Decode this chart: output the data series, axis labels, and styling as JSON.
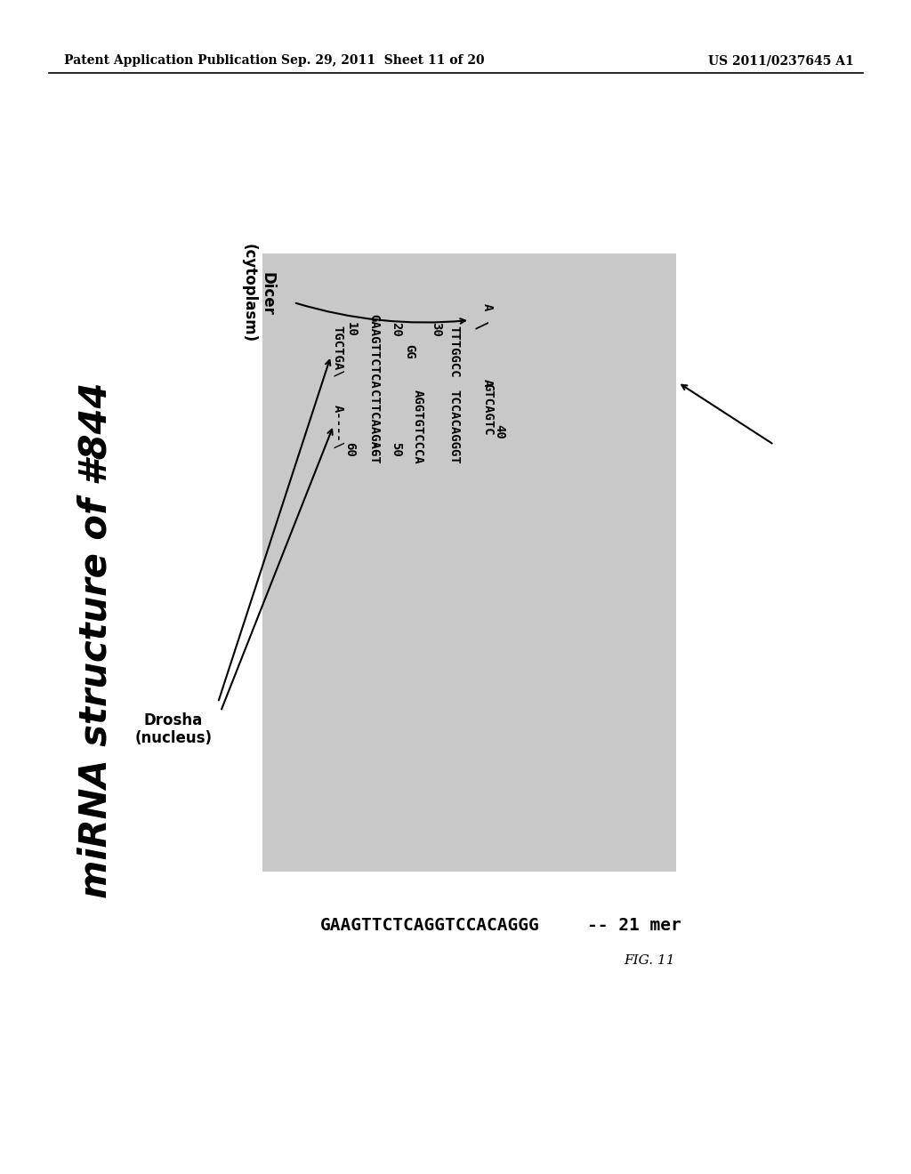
{
  "header_left": "Patent Application Publication",
  "header_center": "Sep. 29, 2011  Sheet 11 of 20",
  "header_right": "US 2011/0237645 A1",
  "title": "miRNA structure of #844",
  "fig_label": "FIG. 11",
  "bottom_seq1": "GAAGTTCTCAGGTCCACAGGG",
  "bottom_seq2": "-- 21 mer",
  "bg_color": "#c8c8c8",
  "dicer_label": "Dicer\n(cytoplasm)",
  "drosha_label": "Drosha\n(nucleus)"
}
